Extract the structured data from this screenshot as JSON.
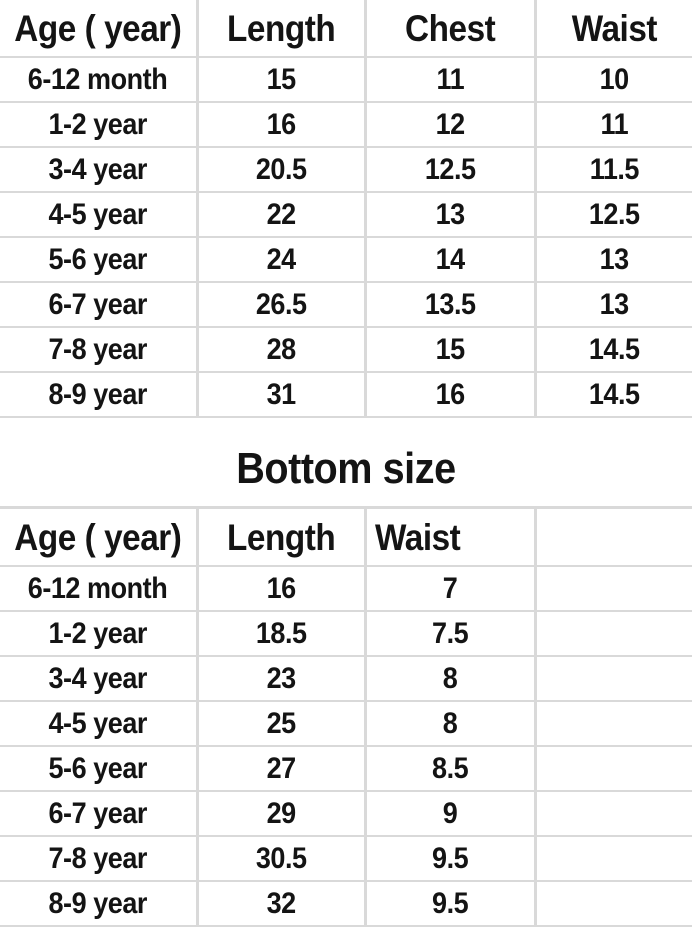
{
  "page": {
    "background": "#ffffff",
    "text_color": "#141414",
    "grid_color": "#d9d9d9"
  },
  "bottom_section_title": "Bottom size",
  "chart_data": [
    {
      "type": "table",
      "title": "",
      "columns": [
        "Age ( year)",
        "Length",
        "Chest",
        "Waist"
      ],
      "rows": [
        [
          "6-12 month",
          "15",
          "11",
          "10"
        ],
        [
          "1-2 year",
          "16",
          "12",
          "11"
        ],
        [
          "3-4 year",
          "20.5",
          "12.5",
          "11.5"
        ],
        [
          "4-5 year",
          "22",
          "13",
          "12.5"
        ],
        [
          "5-6 year",
          "24",
          "14",
          "13"
        ],
        [
          "6-7 year",
          "26.5",
          "13.5",
          "13"
        ],
        [
          "7-8 year",
          "28",
          "15",
          "14.5"
        ],
        [
          "8-9 year",
          "31",
          "16",
          "14.5"
        ]
      ]
    },
    {
      "type": "table",
      "title": "Bottom size",
      "columns": [
        "Age ( year)",
        "Length",
        "Waist"
      ],
      "rows": [
        [
          "6-12 month",
          "16",
          "7"
        ],
        [
          "1-2 year",
          "18.5",
          "7.5"
        ],
        [
          "3-4 year",
          "23",
          "8"
        ],
        [
          "4-5 year",
          "25",
          "8"
        ],
        [
          "5-6 year",
          "27",
          "8.5"
        ],
        [
          "6-7 year",
          "29",
          "9"
        ],
        [
          "7-8 year",
          "30.5",
          "9.5"
        ],
        [
          "8-9 year",
          "32",
          "9.5"
        ]
      ]
    }
  ]
}
